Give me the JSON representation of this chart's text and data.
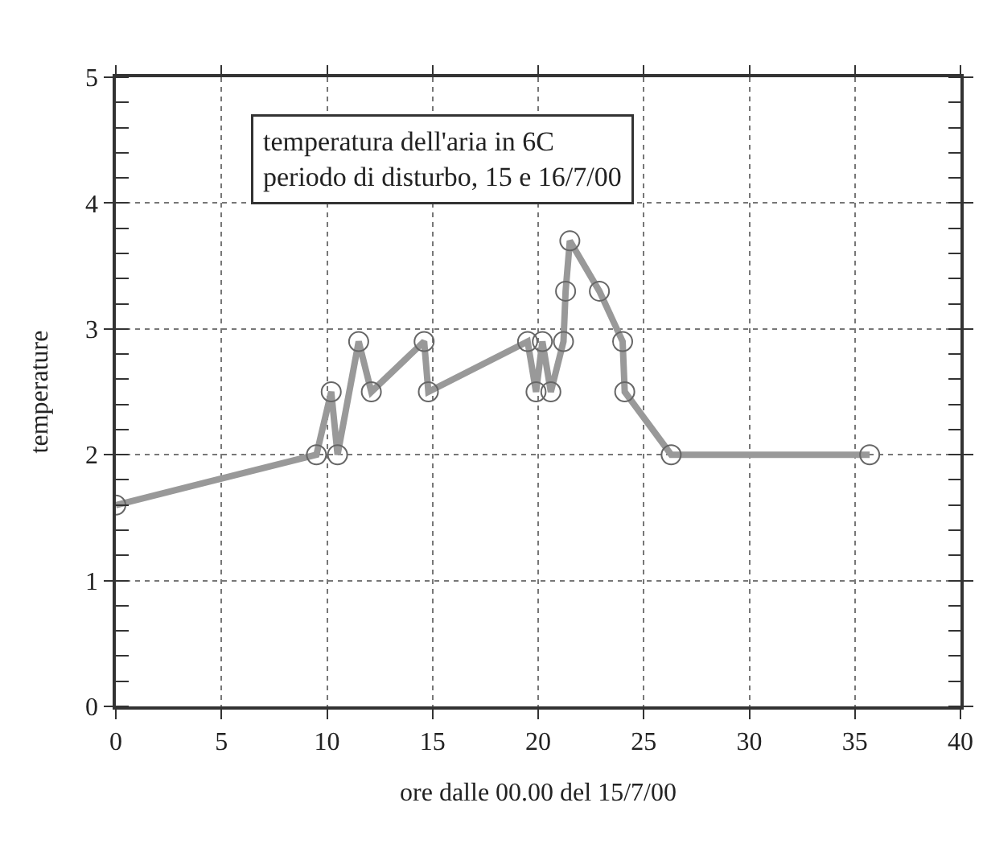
{
  "chart_data": {
    "type": "line",
    "xlabel": "ore dalle 00.00 del 15/7/00",
    "ylabel": "temperature",
    "annotations": [
      "temperatura dell'aria in 6C\nperiodo di disturbo, 15 e 16/7/00"
    ],
    "series": [
      {
        "color": "#999999",
        "x": [
          0,
          9.5,
          10.2,
          10.5,
          11.5,
          12.1,
          14.6,
          14.8,
          19.5,
          19.9,
          20.2,
          20.6,
          21.2,
          21.3,
          21.5,
          22.9,
          24.0,
          24.1,
          26.3,
          35.7
        ],
        "values": [
          1.6,
          2.0,
          2.5,
          2.0,
          2.9,
          2.5,
          2.9,
          2.5,
          2.9,
          2.5,
          2.9,
          2.5,
          2.9,
          3.3,
          3.7,
          3.3,
          2.9,
          2.5,
          2.0,
          2.0
        ]
      }
    ],
    "xlim": [
      0,
      40
    ],
    "xticks": [
      0,
      5,
      10,
      15,
      20,
      25,
      30,
      35,
      40
    ],
    "ylim": [
      0,
      5
    ],
    "yticks": [
      0,
      1,
      2,
      3,
      4,
      5
    ],
    "grid": true,
    "marker": "circle",
    "line_style": "solid"
  }
}
